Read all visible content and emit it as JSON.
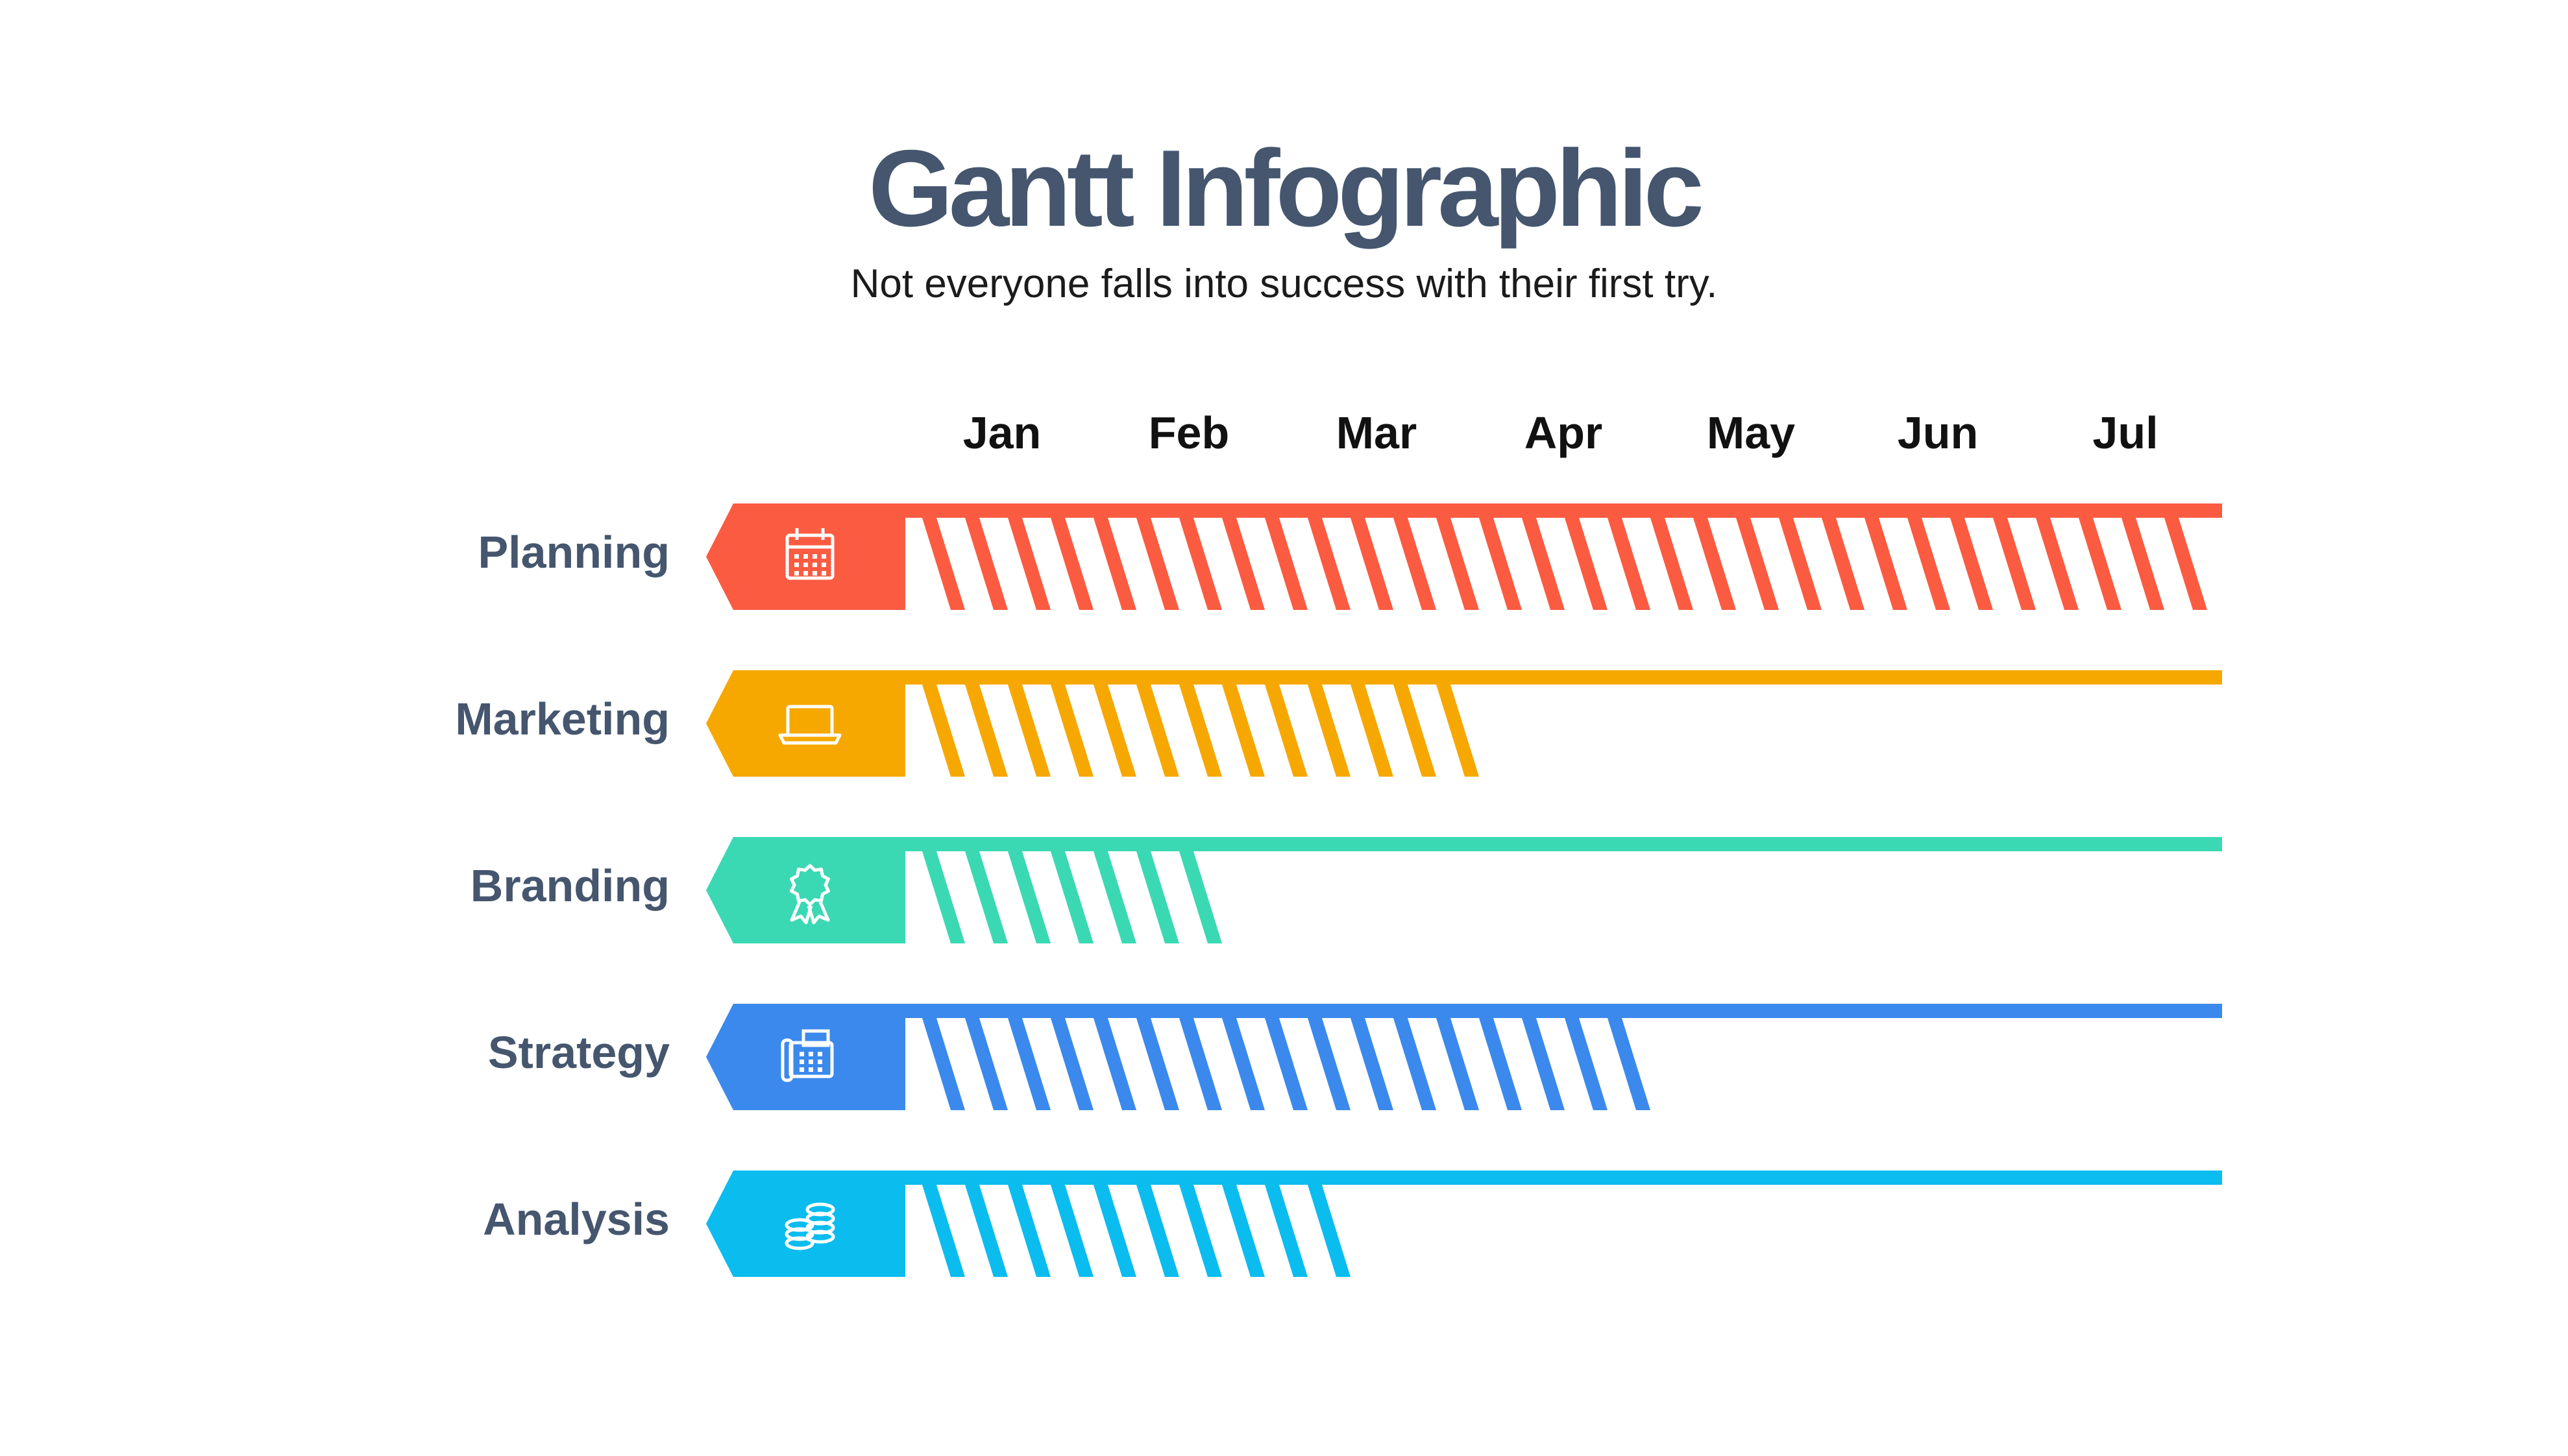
{
  "title": "Gantt Infographic",
  "subtitle": "Not everyone falls into success with their first try.",
  "months": [
    "Jan",
    "Feb",
    "Mar",
    "Apr",
    "May",
    "Jun",
    "Jul"
  ],
  "tasks": [
    {
      "label": "Planning",
      "color": "#fb5b41",
      "icon": "calendar-icon",
      "progress_end_month": 7.5
    },
    {
      "label": "Marketing",
      "color": "#f6a800",
      "icon": "laptop-icon",
      "progress_end_month": 3.5
    },
    {
      "label": "Branding",
      "color": "#3ad9b3",
      "icon": "award-ribbon-icon",
      "progress_end_month": 2.1
    },
    {
      "label": "Strategy",
      "color": "#3b89ec",
      "icon": "fax-machine-icon",
      "progress_end_month": 4.5
    },
    {
      "label": "Analysis",
      "color": "#0bbcef",
      "icon": "coin-stack-icon",
      "progress_end_month": 3.0
    }
  ]
}
